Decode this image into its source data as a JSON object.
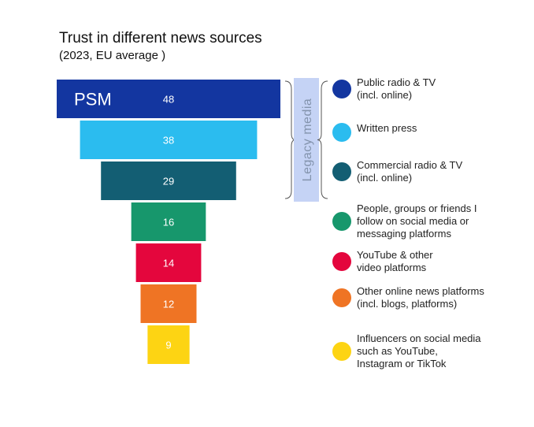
{
  "chart_data": {
    "type": "bar",
    "orientation": "horizontal-funnel",
    "title": "Trust in different news sources",
    "subtitle": "(2023, EU average )",
    "categories": [
      [
        "Public radio & TV",
        "(incl. online)"
      ],
      [
        "Written press"
      ],
      [
        "Commercial radio & TV",
        "(incl. online)"
      ],
      [
        "People, groups or friends I",
        "follow on social media or",
        "messaging platforms"
      ],
      [
        "YouTube & other",
        "video platforms"
      ],
      [
        "Other online news platforms",
        "(incl. blogs, platforms)"
      ],
      [
        "Influencers on social media",
        "such as YouTube,",
        "Instagram or TikTok"
      ]
    ],
    "values": [
      48,
      38,
      29,
      16,
      14,
      12,
      9
    ],
    "colors": [
      "#1336a0",
      "#2bbcef",
      "#135e73",
      "#17976c",
      "#e4063d",
      "#ef7424",
      "#fdd413"
    ],
    "bar_tag": "PSM",
    "group": {
      "label": "Legacy media",
      "covers": [
        0,
        1,
        2
      ],
      "color": "#c5d3f5",
      "text_color": "#8494ad"
    },
    "legend": "right"
  }
}
